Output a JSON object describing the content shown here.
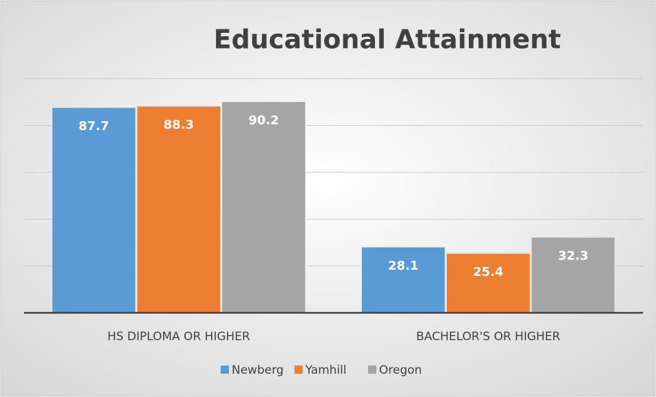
{
  "chart_data": {
    "type": "bar",
    "title": "Educational Attainment",
    "categories": [
      "HS DIPLOMA OR HIGHER",
      "BACHELOR'S OR HIGHER"
    ],
    "series": [
      {
        "name": "Newberg",
        "color": "#5b9bd5",
        "values": [
          87.7,
          28.1
        ]
      },
      {
        "name": "Yamhill",
        "color": "#ed7d31",
        "values": [
          88.3,
          25.4
        ]
      },
      {
        "name": "Oregon",
        "color": "#a5a5a5",
        "values": [
          90.2,
          32.3
        ]
      }
    ],
    "ylim": [
      0,
      100
    ],
    "yticks": [
      0,
      20,
      40,
      60,
      80,
      100
    ],
    "grid": true,
    "legend": "bottom"
  }
}
